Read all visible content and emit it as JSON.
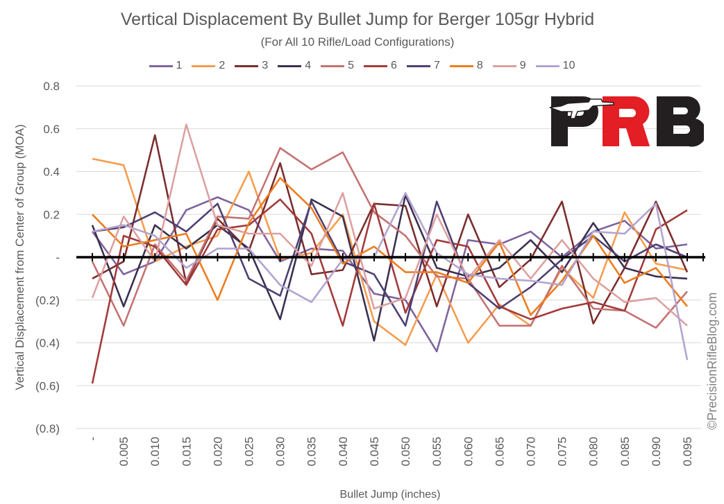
{
  "chart_data": {
    "type": "line",
    "title": "Vertical Displacement By Bullet Jump for Berger 105gr Hybrid",
    "subtitle": "(For All 10 Rifle/Load Configurations)",
    "xlabel": "Bullet Jump (inches)",
    "ylabel": "Vertical Displacement from Center of Group (MOA)",
    "ylim": [
      -0.8,
      0.8
    ],
    "yticks": [
      0.8,
      0.6,
      0.4,
      0.2,
      0,
      -0.2,
      -0.4,
      -0.6,
      -0.8
    ],
    "ytick_labels": [
      "0.8",
      "0.6",
      "0.4",
      "0.2",
      "-",
      "(0.2)",
      "(0.4)",
      "(0.6)",
      "(0.8)"
    ],
    "categories": [
      "-",
      "0.005",
      "0.010",
      "0.015",
      "0.020",
      "0.025",
      "0.030",
      "0.035",
      "0.040",
      "0.045",
      "0.050",
      "0.055",
      "0.060",
      "0.065",
      "0.070",
      "0.075",
      "0.080",
      "0.085",
      "0.090",
      "0.095"
    ],
    "grid": "horizontal",
    "legend_position": "top",
    "series": [
      {
        "name": "1",
        "color": "#7e649e",
        "values": [
          0.12,
          -0.08,
          -0.02,
          0.22,
          0.28,
          0.22,
          -0.02,
          0.04,
          0.03,
          -0.17,
          -0.2,
          -0.44,
          0.08,
          0.06,
          0.12,
          0.0,
          0.12,
          0.17,
          0.04,
          0.06
        ]
      },
      {
        "name": "2",
        "color": "#f59d4e",
        "values": [
          0.46,
          0.43,
          -0.02,
          0.05,
          0.1,
          0.4,
          -0.01,
          0.02,
          0.2,
          -0.3,
          -0.41,
          -0.08,
          -0.4,
          -0.22,
          -0.32,
          -0.05,
          -0.19,
          0.21,
          -0.03,
          -0.06
        ]
      },
      {
        "name": "3",
        "color": "#7b2d2d",
        "values": [
          -0.1,
          -0.02,
          0.57,
          -0.12,
          0.18,
          0.03,
          0.44,
          -0.08,
          -0.06,
          0.25,
          0.24,
          -0.23,
          0.2,
          -0.14,
          -0.01,
          0.26,
          -0.31,
          -0.05,
          0.26,
          -0.07
        ]
      },
      {
        "name": "4",
        "color": "#3b3050",
        "values": [
          0.15,
          -0.23,
          0.15,
          0.04,
          0.15,
          0.04,
          -0.29,
          0.27,
          0.19,
          -0.39,
          0.29,
          -0.05,
          -0.09,
          -0.05,
          0.08,
          -0.07,
          0.16,
          -0.05,
          -0.09,
          -0.1
        ]
      },
      {
        "name": "5",
        "color": "#c47272",
        "values": [
          -0.02,
          -0.32,
          0.06,
          -0.11,
          0.19,
          0.18,
          0.51,
          0.41,
          0.49,
          0.21,
          0.1,
          -0.09,
          -0.1,
          -0.32,
          -0.32,
          -0.04,
          -0.24,
          -0.25,
          -0.33,
          -0.16
        ]
      },
      {
        "name": "6",
        "color": "#a33a3a",
        "values": [
          -0.59,
          0.1,
          0.05,
          -0.13,
          0.13,
          0.15,
          0.27,
          0.11,
          -0.32,
          0.25,
          -0.26,
          0.08,
          0.05,
          -0.23,
          -0.29,
          -0.24,
          -0.21,
          -0.25,
          0.13,
          0.22
        ]
      },
      {
        "name": "7",
        "color": "#4e3f72",
        "values": [
          0.12,
          0.14,
          0.21,
          0.12,
          0.25,
          -0.1,
          -0.18,
          0.26,
          -0.02,
          -0.08,
          -0.32,
          0.26,
          -0.12,
          -0.24,
          -0.14,
          -0.01,
          0.1,
          -0.02,
          0.06,
          0.0
        ]
      },
      {
        "name": "8",
        "color": "#ed7d1f",
        "values": [
          0.2,
          0.05,
          0.08,
          0.11,
          -0.2,
          0.16,
          0.37,
          0.23,
          -0.03,
          0.05,
          -0.07,
          -0.07,
          -0.12,
          0.07,
          -0.27,
          -0.11,
          0.1,
          -0.12,
          -0.05,
          -0.23
        ]
      },
      {
        "name": "9",
        "color": "#dda0a0",
        "values": [
          -0.19,
          0.19,
          -0.02,
          0.62,
          0.15,
          0.11,
          0.11,
          -0.04,
          0.3,
          -0.24,
          -0.19,
          0.2,
          -0.1,
          0.08,
          -0.1,
          0.08,
          -0.1,
          -0.21,
          -0.19,
          -0.32
        ]
      },
      {
        "name": "10",
        "color": "#b3a4cf",
        "values": [
          0.12,
          0.15,
          0.1,
          -0.05,
          0.04,
          0.04,
          -0.13,
          -0.21,
          -0.01,
          0.0,
          0.3,
          0.02,
          -0.08,
          -0.1,
          -0.11,
          -0.13,
          0.12,
          0.11,
          0.25,
          -0.48
        ]
      }
    ]
  },
  "logo": {
    "text": "PRB"
  },
  "copyright": "©PrecisionRifleBlog.com"
}
